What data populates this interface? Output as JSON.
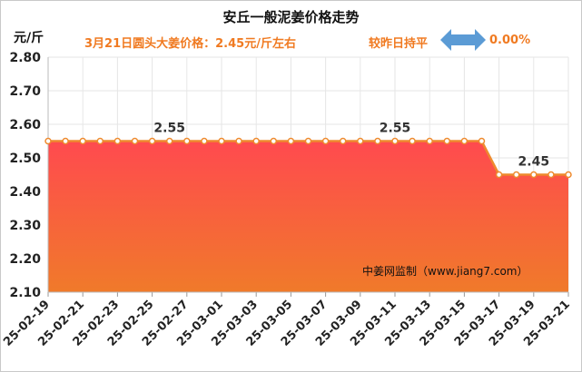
{
  "title": "安丘一般泥姜价格走势",
  "subtitle": "3月21日圆头大姜价格：2.45元/斤左右",
  "trend_text": "较昨日持平",
  "change_text": "0.00%",
  "unit_label": "元/斤",
  "source_text": "中姜网监制（www.jiang7.com）",
  "colors": {
    "accent": "#f07a21",
    "line": "#ee8a2e",
    "area_top": "#ff4a4f",
    "area_bottom": "#f07a2a",
    "arrow": "#5b9bd5"
  },
  "icons": {
    "trend_arrow": "double-arrow-icon"
  },
  "chart_data": {
    "type": "area",
    "title": "安丘一般泥姜价格走势",
    "ylabel": "元/斤",
    "xlabel": "",
    "ylim": [
      2.1,
      2.8
    ],
    "yticks": [
      "2.10",
      "2.20",
      "2.30",
      "2.40",
      "2.50",
      "2.60",
      "2.70",
      "2.80"
    ],
    "grid": true,
    "x": [
      "25-02-19",
      "25-02-20",
      "25-02-21",
      "25-02-22",
      "25-02-23",
      "25-02-24",
      "25-02-25",
      "25-02-26",
      "25-02-27",
      "25-02-28",
      "25-03-01",
      "25-03-02",
      "25-03-03",
      "25-03-04",
      "25-03-05",
      "25-03-06",
      "25-03-07",
      "25-03-08",
      "25-03-09",
      "25-03-10",
      "25-03-11",
      "25-03-12",
      "25-03-13",
      "25-03-14",
      "25-03-15",
      "25-03-16",
      "25-03-17",
      "25-03-18",
      "25-03-19",
      "25-03-20",
      "25-03-21"
    ],
    "xtick_labels": [
      "25-02-19",
      "25-02-21",
      "25-02-23",
      "25-02-25",
      "25-02-27",
      "25-03-01",
      "25-03-03",
      "25-03-05",
      "25-03-07",
      "25-03-09",
      "25-03-11",
      "25-03-13",
      "25-03-15",
      "25-03-17",
      "25-03-19",
      "25-03-21"
    ],
    "values": [
      2.55,
      2.55,
      2.55,
      2.55,
      2.55,
      2.55,
      2.55,
      2.55,
      2.55,
      2.55,
      2.55,
      2.55,
      2.55,
      2.55,
      2.55,
      2.55,
      2.55,
      2.55,
      2.55,
      2.55,
      2.55,
      2.55,
      2.55,
      2.55,
      2.55,
      2.55,
      2.45,
      2.45,
      2.45,
      2.45,
      2.45
    ],
    "data_labels": [
      {
        "index": 7,
        "text": "2.55"
      },
      {
        "index": 20,
        "text": "2.55"
      },
      {
        "index": 28,
        "text": "2.45"
      }
    ]
  }
}
